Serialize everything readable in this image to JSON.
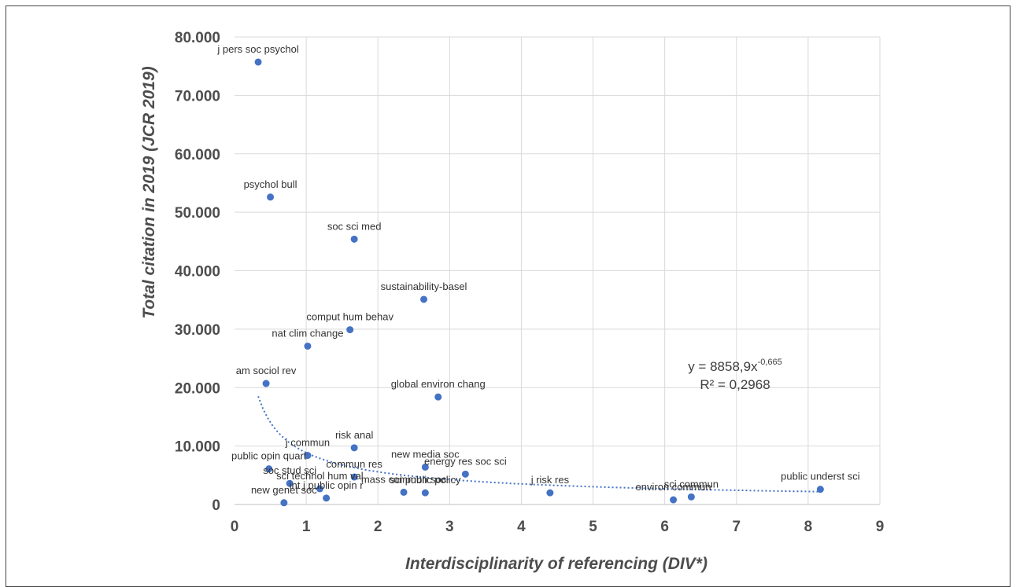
{
  "chart_data": {
    "type": "scatter",
    "title": "",
    "xlabel": "Interdisciplinarity of referencing (DIV*)",
    "ylabel": "Total citation in 2019 (JCR 2019)",
    "xlim": [
      0,
      9
    ],
    "ylim": [
      0,
      80000
    ],
    "x_ticks": [
      "0",
      "1",
      "2",
      "3",
      "4",
      "5",
      "6",
      "7",
      "8",
      "9"
    ],
    "y_ticks": [
      "0",
      "10.000",
      "20.000",
      "30.000",
      "40.000",
      "50.000",
      "60.000",
      "70.000",
      "80.000"
    ],
    "grid": true,
    "color": "#4472c4",
    "points": [
      {
        "label": "j pers soc psychol",
        "x": 0.33,
        "y": 75700
      },
      {
        "label": "psychol bull",
        "x": 0.5,
        "y": 52600
      },
      {
        "label": "soc sci med",
        "x": 1.67,
        "y": 45400
      },
      {
        "label": "sustainability-basel",
        "x": 2.64,
        "y": 35100
      },
      {
        "label": "comput hum behav",
        "x": 1.61,
        "y": 29900
      },
      {
        "label": "nat clim change",
        "x": 1.02,
        "y": 27100
      },
      {
        "label": "am sociol rev",
        "x": 0.44,
        "y": 20700
      },
      {
        "label": "global environ chang",
        "x": 2.84,
        "y": 18400
      },
      {
        "label": "risk anal",
        "x": 1.67,
        "y": 9700
      },
      {
        "label": "j commun",
        "x": 1.02,
        "y": 8400
      },
      {
        "label": "public opin quart",
        "x": 0.48,
        "y": 6100
      },
      {
        "label": "new media soc",
        "x": 2.66,
        "y": 6400
      },
      {
        "label": "energy res soc sci",
        "x": 3.22,
        "y": 5200
      },
      {
        "label": "commun res",
        "x": 1.67,
        "y": 4700
      },
      {
        "label": "soc stud sci",
        "x": 0.77,
        "y": 3600
      },
      {
        "label": "sci technol hum val",
        "x": 1.19,
        "y": 2700
      },
      {
        "label": "int j public opin r",
        "x": 1.28,
        "y": 1100
      },
      {
        "label": "mass commun soc",
        "x": 2.36,
        "y": 2100
      },
      {
        "label": "sci public policy",
        "x": 2.66,
        "y": 2000
      },
      {
        "label": "new genet soc",
        "x": 0.69,
        "y": 300
      },
      {
        "label": "j risk res",
        "x": 4.4,
        "y": 2000
      },
      {
        "label": "environ commun",
        "x": 6.12,
        "y": 800
      },
      {
        "label": "sci commun",
        "x": 6.37,
        "y": 1300
      },
      {
        "label": "public underst sci",
        "x": 8.17,
        "y": 2600
      }
    ],
    "trendline": {
      "type": "power",
      "coefficient": 8858.9,
      "exponent": -0.665,
      "x_range": [
        0.33,
        8.17
      ],
      "equation_text": "y = 8858,9x",
      "equation_exponent": "-0,665",
      "r2_text": "R² = 0,2968"
    }
  }
}
